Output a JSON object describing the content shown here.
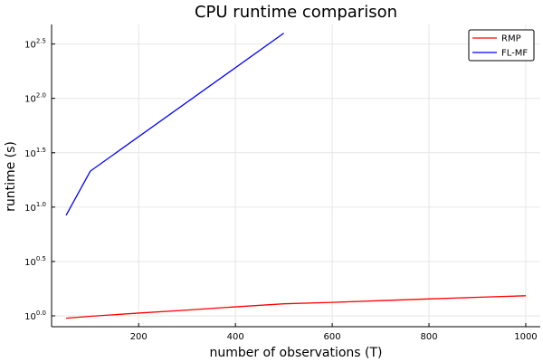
{
  "chart_data": {
    "type": "line",
    "title": "CPU runtime comparison",
    "xlabel": "number of observations (T)",
    "ylabel": "runtime (s)",
    "xlim": [
      20,
      1030
    ],
    "ylim_log10": [
      -0.1,
      2.68
    ],
    "y_scale": "log10",
    "x_ticks": [
      200,
      400,
      600,
      800,
      1000
    ],
    "y_ticks_exponent": [
      "0.0",
      "0.5",
      "1.0",
      "1.5",
      "2.0",
      "2.5"
    ],
    "y_tick_base": "10",
    "grid": true,
    "legend_position": "top-right",
    "series": [
      {
        "name": "RMP",
        "color": "#ff0000",
        "x": [
          50,
          100,
          200,
          300,
          400,
          500,
          600,
          700,
          800,
          900,
          1000
        ],
        "y": [
          0.95,
          0.99,
          1.06,
          1.13,
          1.21,
          1.29,
          1.33,
          1.38,
          1.43,
          1.48,
          1.53
        ]
      },
      {
        "name": "FL-MF",
        "color": "#0000ff",
        "x": [
          50,
          100,
          500
        ],
        "y": [
          8.4,
          21.4,
          398
        ]
      }
    ]
  }
}
